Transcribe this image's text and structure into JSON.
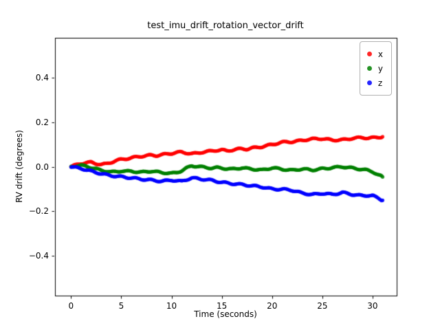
{
  "figure": {
    "background": "#ffffff"
  },
  "chart_data": {
    "type": "scatter",
    "title": "test_imu_drift_rotation_vector_drift",
    "xlabel": "Time (seconds)",
    "ylabel": "RV drift (degrees)",
    "xlim": [
      -1.6,
      32.4
    ],
    "ylim": [
      -0.58,
      0.58
    ],
    "grid": false,
    "legend_position": "upper right",
    "xticks": [
      0,
      5,
      10,
      15,
      20,
      25,
      30
    ],
    "xtick_labels": [
      "0",
      "5",
      "10",
      "15",
      "20",
      "25",
      "30"
    ],
    "yticks": [
      -0.4,
      -0.2,
      0.0,
      0.2,
      0.4
    ],
    "ytick_labels": [
      "−0.4",
      "−0.2",
      "0.0",
      "0.2",
      "0.4"
    ],
    "x": [
      0,
      0.5,
      1,
      1.5,
      2,
      2.5,
      3,
      3.5,
      4,
      4.5,
      5,
      5.5,
      6,
      6.5,
      7,
      7.5,
      8,
      8.5,
      9,
      9.5,
      10,
      10.5,
      11,
      11.5,
      12,
      12.5,
      13,
      13.5,
      14,
      14.5,
      15,
      15.5,
      16,
      16.5,
      17,
      17.5,
      18,
      18.5,
      19,
      19.5,
      20,
      20.5,
      21,
      21.5,
      22,
      22.5,
      23,
      23.5,
      24,
      24.5,
      25,
      25.5,
      26,
      26.5,
      27,
      27.5,
      28,
      28.5,
      29,
      29.5,
      30,
      30.5,
      31
    ],
    "series": [
      {
        "name": "x",
        "color": "#ff0000",
        "values": [
          0.0,
          0.008,
          0.015,
          0.018,
          0.02,
          0.014,
          0.01,
          0.013,
          0.02,
          0.028,
          0.033,
          0.036,
          0.04,
          0.044,
          0.047,
          0.05,
          0.052,
          0.05,
          0.054,
          0.057,
          0.06,
          0.064,
          0.066,
          0.062,
          0.058,
          0.061,
          0.065,
          0.068,
          0.071,
          0.074,
          0.076,
          0.071,
          0.075,
          0.079,
          0.081,
          0.079,
          0.084,
          0.087,
          0.09,
          0.095,
          0.1,
          0.105,
          0.11,
          0.112,
          0.112,
          0.115,
          0.119,
          0.122,
          0.125,
          0.126,
          0.126,
          0.123,
          0.12,
          0.12,
          0.121,
          0.124,
          0.128,
          0.13,
          0.131,
          0.129,
          0.13,
          0.132,
          0.135
        ]
      },
      {
        "name": "y",
        "color": "#008000",
        "values": [
          0.0,
          0.004,
          0.006,
          0.002,
          -0.004,
          -0.01,
          -0.016,
          -0.02,
          -0.024,
          -0.022,
          -0.019,
          -0.021,
          -0.02,
          -0.023,
          -0.025,
          -0.022,
          -0.02,
          -0.023,
          -0.026,
          -0.028,
          -0.03,
          -0.026,
          -0.018,
          -0.006,
          0.004,
          0.002,
          -0.001,
          -0.004,
          -0.006,
          -0.004,
          -0.006,
          -0.009,
          -0.011,
          -0.008,
          -0.005,
          -0.008,
          -0.01,
          -0.013,
          -0.015,
          -0.01,
          -0.005,
          -0.008,
          -0.011,
          -0.014,
          -0.016,
          -0.013,
          -0.01,
          -0.012,
          -0.015,
          -0.012,
          -0.009,
          -0.007,
          -0.004,
          -0.002,
          0.0,
          -0.003,
          -0.006,
          -0.009,
          -0.012,
          -0.016,
          -0.022,
          -0.035,
          -0.046
        ]
      },
      {
        "name": "z",
        "color": "#0000ff",
        "values": [
          0.0,
          -0.004,
          -0.008,
          -0.014,
          -0.02,
          -0.026,
          -0.031,
          -0.036,
          -0.04,
          -0.043,
          -0.045,
          -0.048,
          -0.05,
          -0.053,
          -0.056,
          -0.058,
          -0.06,
          -0.063,
          -0.065,
          -0.063,
          -0.06,
          -0.063,
          -0.066,
          -0.058,
          -0.05,
          -0.053,
          -0.056,
          -0.058,
          -0.061,
          -0.066,
          -0.07,
          -0.073,
          -0.076,
          -0.078,
          -0.08,
          -0.083,
          -0.086,
          -0.088,
          -0.091,
          -0.096,
          -0.1,
          -0.101,
          -0.101,
          -0.103,
          -0.106,
          -0.112,
          -0.119,
          -0.122,
          -0.125,
          -0.123,
          -0.12,
          -0.122,
          -0.125,
          -0.121,
          -0.116,
          -0.12,
          -0.125,
          -0.128,
          -0.13,
          -0.129,
          -0.13,
          -0.14,
          -0.151
        ]
      }
    ]
  }
}
